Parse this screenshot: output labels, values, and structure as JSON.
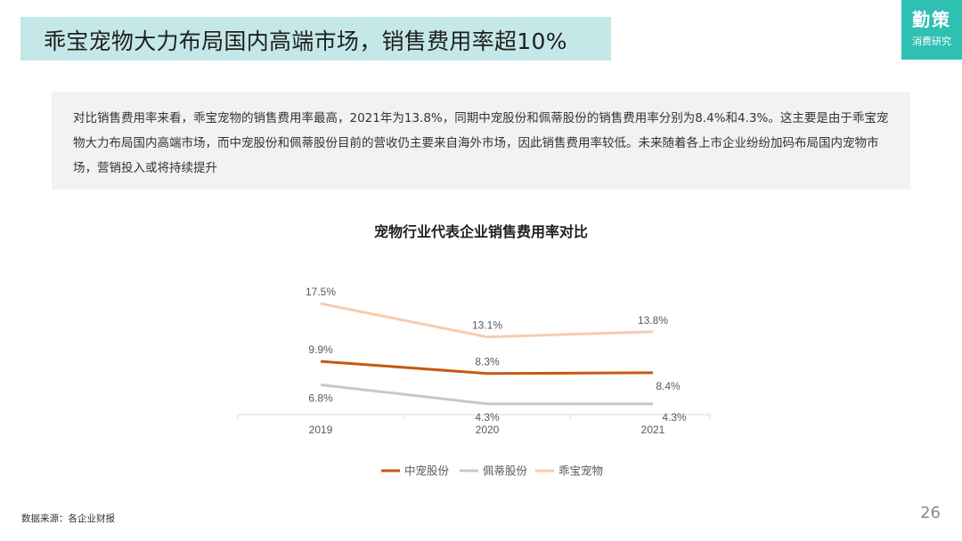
{
  "header": {
    "title": "乖宝宠物大力布局国内高端市场，销售费用率超10%"
  },
  "logo": {
    "main": "勤策",
    "sub": "消费研究",
    "color": "#2fbfb3"
  },
  "summary": {
    "text": "对比销售费用率来看，乖宝宠物的销售费用率最高，2021年为13.8%，同期中宠股份和佩蒂股份的销售费用率分别为8.4%和4.3%。这主要是由于乖宝宠物大力布局国内高端市场，而中宠股份和佩蒂股份目前的营收仍主要来自海外市场，因此销售费用率较低。未来随着各上市企业纷纷加码布局国内宠物市场，营销投入或将持续提升"
  },
  "chart_data": {
    "type": "line",
    "title": "宠物行业代表企业销售费用率对比",
    "categories": [
      "2019",
      "2020",
      "2021"
    ],
    "unit": "%",
    "legend_position": "bottom",
    "grid": false,
    "ylim": [
      0,
      20
    ],
    "series": [
      {
        "name": "中宠股份",
        "values": [
          9.9,
          8.3,
          8.4
        ],
        "labels": [
          "9.9%",
          "8.3%",
          "8.4%"
        ],
        "color": "#c55a11"
      },
      {
        "name": "佩蒂股份",
        "values": [
          6.8,
          4.3,
          4.3
        ],
        "labels": [
          "6.8%",
          "4.3%",
          "4.3%"
        ],
        "color": "#c8c8c8"
      },
      {
        "name": "乖宝宠物",
        "values": [
          17.5,
          13.1,
          13.8
        ],
        "labels": [
          "17.5%",
          "13.1%",
          "13.8%"
        ],
        "color": "#f8cbad"
      }
    ]
  },
  "footer": {
    "source": "数据来源：各企业财报",
    "page_number": "26"
  }
}
